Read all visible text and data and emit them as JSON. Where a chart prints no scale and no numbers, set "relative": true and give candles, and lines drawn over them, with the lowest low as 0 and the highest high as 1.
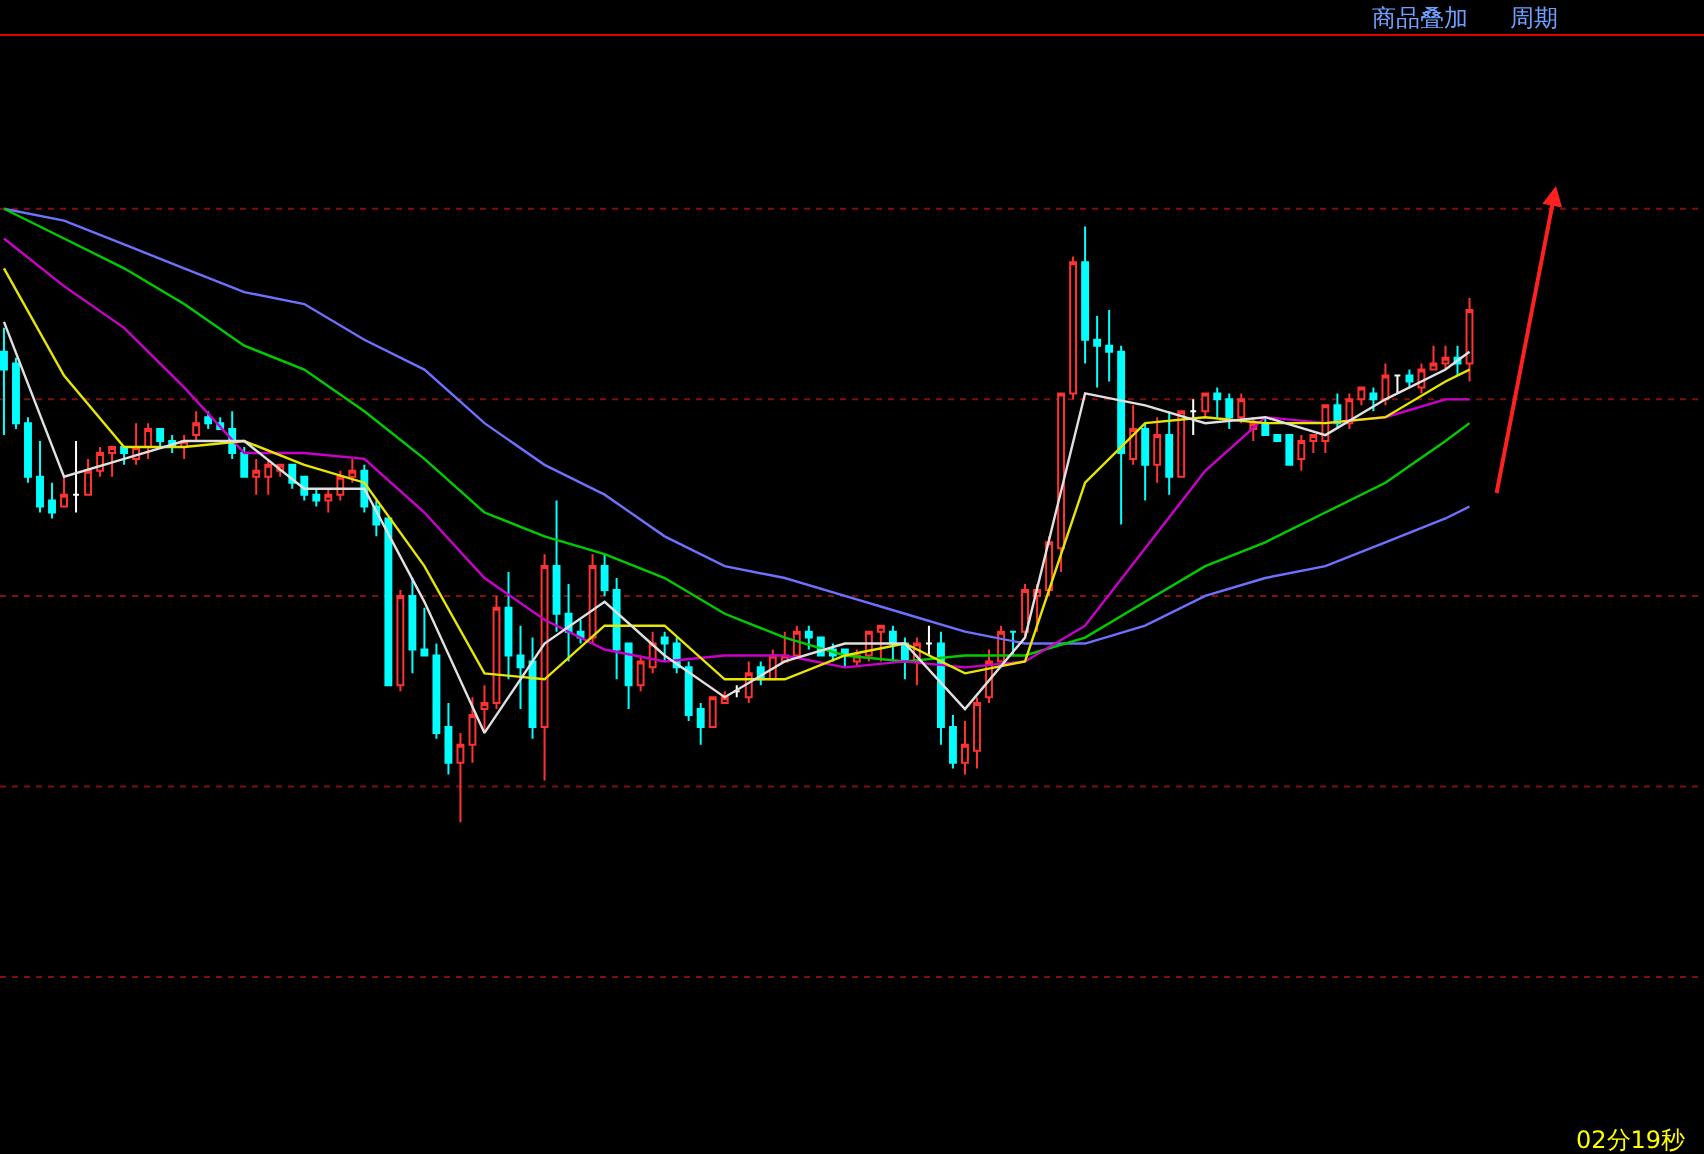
{
  "chart_data": {
    "type": "candlestick",
    "relative": true,
    "tick_labels": false,
    "ref_lines": [
      {
        "axis": "y",
        "value": 1.03,
        "color": "#801010",
        "line_style": "dotted"
      },
      {
        "axis": "y",
        "value": 0.71,
        "color": "#801010",
        "line_style": "dotted"
      },
      {
        "axis": "y",
        "value": 0.38,
        "color": "#801010",
        "line_style": "dotted"
      },
      {
        "axis": "y",
        "value": 0.06,
        "color": "#801010",
        "line_style": "dotted"
      },
      {
        "axis": "y",
        "value": -0.26,
        "color": "#801010",
        "line_style": "dotted"
      }
    ],
    "annotations": [
      "商品叠加",
      "周期",
      "02分19秒"
    ],
    "categories": [
      null,
      null,
      null,
      null,
      null,
      null,
      null,
      null,
      null,
      null,
      null,
      null,
      null,
      null,
      null,
      null,
      null,
      null,
      null,
      null,
      null,
      null,
      null,
      null,
      null,
      null,
      null,
      null,
      null,
      null,
      null,
      null,
      null,
      null,
      null,
      null,
      null,
      null,
      null,
      null,
      null,
      null,
      null,
      null,
      null,
      null,
      null,
      null,
      null,
      null,
      null,
      null,
      null,
      null,
      null,
      null,
      null,
      null,
      null,
      null,
      null,
      null,
      null,
      null,
      null,
      null,
      null,
      null,
      null,
      null,
      null,
      null,
      null,
      null,
      null,
      null,
      null,
      null,
      null,
      null,
      null,
      null,
      null,
      null,
      null,
      null,
      null,
      null,
      null,
      null,
      null,
      null,
      null,
      null,
      null,
      null,
      null,
      null,
      null,
      null,
      null,
      null,
      null,
      null,
      null,
      null,
      null,
      null,
      null,
      null,
      null,
      null,
      null,
      null,
      null,
      null,
      null,
      null,
      null,
      null,
      null,
      null,
      null
    ],
    "ohlc": [
      [
        0.79,
        0.83,
        0.65,
        0.76
      ],
      [
        0.77,
        0.78,
        0.66,
        0.67
      ],
      [
        0.67,
        0.68,
        0.57,
        0.58
      ],
      [
        0.58,
        0.64,
        0.52,
        0.53
      ],
      [
        0.54,
        0.57,
        0.51,
        0.52
      ],
      [
        0.53,
        0.58,
        0.53,
        0.55
      ],
      [
        0.55,
        0.64,
        0.52,
        0.55
      ],
      [
        0.55,
        0.61,
        0.55,
        0.59
      ],
      [
        0.59,
        0.63,
        0.58,
        0.62
      ],
      [
        0.62,
        0.63,
        0.58,
        0.63
      ],
      [
        0.63,
        0.63,
        0.6,
        0.62
      ],
      [
        0.61,
        0.67,
        0.6,
        0.63
      ],
      [
        0.63,
        0.67,
        0.61,
        0.66
      ],
      [
        0.66,
        0.66,
        0.63,
        0.64
      ],
      [
        0.64,
        0.65,
        0.62,
        0.63
      ],
      [
        0.63,
        0.65,
        0.61,
        0.64
      ],
      [
        0.65,
        0.69,
        0.64,
        0.67
      ],
      [
        0.68,
        0.69,
        0.66,
        0.67
      ],
      [
        0.67,
        0.68,
        0.66,
        0.66
      ],
      [
        0.66,
        0.69,
        0.61,
        0.62
      ],
      [
        0.62,
        0.63,
        0.58,
        0.58
      ],
      [
        0.58,
        0.61,
        0.55,
        0.59
      ],
      [
        0.58,
        0.61,
        0.55,
        0.6
      ],
      [
        0.59,
        0.6,
        0.58,
        0.6
      ],
      [
        0.6,
        0.6,
        0.56,
        0.57
      ],
      [
        0.58,
        0.58,
        0.54,
        0.55
      ],
      [
        0.55,
        0.56,
        0.53,
        0.54
      ],
      [
        0.54,
        0.56,
        0.52,
        0.55
      ],
      [
        0.55,
        0.59,
        0.54,
        0.58
      ],
      [
        0.58,
        0.61,
        0.57,
        0.59
      ],
      [
        0.59,
        0.6,
        0.52,
        0.53
      ],
      [
        0.53,
        0.54,
        0.48,
        0.5
      ],
      [
        0.51,
        0.51,
        0.23,
        0.23
      ],
      [
        0.23,
        0.39,
        0.22,
        0.38
      ],
      [
        0.38,
        0.41,
        0.25,
        0.29
      ],
      [
        0.29,
        0.36,
        0.28,
        0.28
      ],
      [
        0.28,
        0.3,
        0.14,
        0.15
      ],
      [
        0.16,
        0.2,
        0.08,
        0.1
      ],
      [
        0.1,
        0.15,
        0.0,
        0.13
      ],
      [
        0.13,
        0.21,
        0.1,
        0.18
      ],
      [
        0.19,
        0.23,
        0.15,
        0.2
      ],
      [
        0.2,
        0.38,
        0.19,
        0.36
      ],
      [
        0.36,
        0.42,
        0.24,
        0.28
      ],
      [
        0.28,
        0.33,
        0.19,
        0.26
      ],
      [
        0.27,
        0.31,
        0.14,
        0.16
      ],
      [
        0.16,
        0.45,
        0.07,
        0.43
      ],
      [
        0.43,
        0.54,
        0.32,
        0.35
      ],
      [
        0.35,
        0.4,
        0.27,
        0.32
      ],
      [
        0.32,
        0.34,
        0.3,
        0.31
      ],
      [
        0.31,
        0.45,
        0.3,
        0.43
      ],
      [
        0.43,
        0.45,
        0.38,
        0.39
      ],
      [
        0.39,
        0.41,
        0.24,
        0.29
      ],
      [
        0.3,
        0.3,
        0.19,
        0.23
      ],
      [
        0.23,
        0.28,
        0.22,
        0.27
      ],
      [
        0.26,
        0.32,
        0.25,
        0.3
      ],
      [
        0.31,
        0.32,
        0.27,
        0.3
      ],
      [
        0.3,
        0.31,
        0.25,
        0.26
      ],
      [
        0.26,
        0.27,
        0.17,
        0.18
      ],
      [
        0.19,
        0.2,
        0.13,
        0.16
      ],
      [
        0.16,
        0.21,
        0.16,
        0.21
      ],
      [
        0.2,
        0.22,
        0.2,
        0.21
      ],
      [
        0.22,
        0.23,
        0.21,
        0.22
      ],
      [
        0.21,
        0.27,
        0.2,
        0.25
      ],
      [
        0.26,
        0.27,
        0.23,
        0.24
      ],
      [
        0.24,
        0.29,
        0.24,
        0.28
      ],
      [
        0.27,
        0.32,
        0.27,
        0.28
      ],
      [
        0.28,
        0.33,
        0.28,
        0.32
      ],
      [
        0.32,
        0.33,
        0.29,
        0.31
      ],
      [
        0.31,
        0.31,
        0.28,
        0.28
      ],
      [
        0.29,
        0.3,
        0.27,
        0.28
      ],
      [
        0.29,
        0.29,
        0.26,
        0.28
      ],
      [
        0.27,
        0.29,
        0.26,
        0.28
      ],
      [
        0.28,
        0.32,
        0.27,
        0.32
      ],
      [
        0.32,
        0.33,
        0.27,
        0.33
      ],
      [
        0.32,
        0.33,
        0.27,
        0.3
      ],
      [
        0.3,
        0.31,
        0.24,
        0.27
      ],
      [
        0.27,
        0.31,
        0.23,
        0.3
      ],
      [
        0.3,
        0.33,
        0.28,
        0.3
      ],
      [
        0.3,
        0.32,
        0.13,
        0.16
      ],
      [
        0.16,
        0.18,
        0.09,
        0.1
      ],
      [
        0.1,
        0.17,
        0.08,
        0.13
      ],
      [
        0.12,
        0.21,
        0.09,
        0.2
      ],
      [
        0.21,
        0.29,
        0.2,
        0.27
      ],
      [
        0.27,
        0.33,
        0.27,
        0.32
      ],
      [
        0.32,
        0.32,
        0.28,
        0.32
      ],
      [
        0.32,
        0.4,
        0.31,
        0.39
      ],
      [
        0.38,
        0.4,
        0.32,
        0.39
      ],
      [
        0.39,
        0.48,
        0.38,
        0.47
      ],
      [
        0.46,
        0.72,
        0.42,
        0.72
      ],
      [
        0.72,
        0.95,
        0.71,
        0.94
      ],
      [
        0.94,
        1.0,
        0.77,
        0.81
      ],
      [
        0.81,
        0.85,
        0.73,
        0.8
      ],
      [
        0.8,
        0.86,
        0.74,
        0.79
      ],
      [
        0.79,
        0.8,
        0.5,
        0.62
      ],
      [
        0.61,
        0.7,
        0.6,
        0.66
      ],
      [
        0.66,
        0.67,
        0.54,
        0.6
      ],
      [
        0.6,
        0.68,
        0.57,
        0.65
      ],
      [
        0.65,
        0.69,
        0.55,
        0.58
      ],
      [
        0.58,
        0.69,
        0.58,
        0.69
      ],
      [
        0.69,
        0.71,
        0.65,
        0.69
      ],
      [
        0.69,
        0.72,
        0.68,
        0.72
      ],
      [
        0.72,
        0.73,
        0.68,
        0.71
      ],
      [
        0.71,
        0.72,
        0.66,
        0.68
      ],
      [
        0.68,
        0.72,
        0.67,
        0.71
      ],
      [
        0.66,
        0.68,
        0.64,
        0.67
      ],
      [
        0.67,
        0.68,
        0.65,
        0.65
      ],
      [
        0.65,
        0.65,
        0.64,
        0.64
      ],
      [
        0.65,
        0.65,
        0.6,
        0.6
      ],
      [
        0.61,
        0.65,
        0.59,
        0.64
      ],
      [
        0.64,
        0.65,
        0.62,
        0.65
      ],
      [
        0.64,
        0.7,
        0.62,
        0.7
      ],
      [
        0.7,
        0.72,
        0.66,
        0.67
      ],
      [
        0.67,
        0.72,
        0.66,
        0.71
      ],
      [
        0.71,
        0.73,
        0.7,
        0.73
      ],
      [
        0.72,
        0.73,
        0.69,
        0.71
      ],
      [
        0.71,
        0.77,
        0.7,
        0.75
      ],
      [
        0.75,
        0.75,
        0.72,
        0.75
      ],
      [
        0.75,
        0.76,
        0.73,
        0.74
      ],
      [
        0.73,
        0.77,
        0.72,
        0.76
      ],
      [
        0.76,
        0.8,
        0.76,
        0.77
      ],
      [
        0.77,
        0.8,
        0.76,
        0.78
      ],
      [
        0.78,
        0.8,
        0.75,
        0.77
      ],
      [
        0.77,
        0.88,
        0.74,
        0.86
      ]
    ],
    "colors": [
      "#00ffff",
      "#00ffff",
      "#00ffff",
      "#00ffff",
      "#00ffff",
      "#ff3232",
      "#ffffff",
      "#ff3232",
      "#ff3232",
      "#ff3232",
      "#00ffff",
      "#ff3232",
      "#ff3232",
      "#00ffff",
      "#00ffff",
      "#ff3232",
      "#ff3232",
      "#00ffff",
      "#00ffff",
      "#00ffff",
      "#00ffff",
      "#ff3232",
      "#ff3232",
      "#ff3232",
      "#00ffff",
      "#00ffff",
      "#00ffff",
      "#ff3232",
      "#ff3232",
      "#ff3232",
      "#00ffff",
      "#00ffff",
      "#00ffff",
      "#ff3232",
      "#00ffff",
      "#00ffff",
      "#00ffff",
      "#00ffff",
      "#ff3232",
      "#ff3232",
      "#ff3232",
      "#ff3232",
      "#00ffff",
      "#00ffff",
      "#00ffff",
      "#ff3232",
      "#00ffff",
      "#00ffff",
      "#00ffff",
      "#ff3232",
      "#00ffff",
      "#00ffff",
      "#00ffff",
      "#ff3232",
      "#ff3232",
      "#00ffff",
      "#00ffff",
      "#00ffff",
      "#00ffff",
      "#ff3232",
      "#ff3232",
      "#ffffff",
      "#ff3232",
      "#00ffff",
      "#ff3232",
      "#ff3232",
      "#ff3232",
      "#00ffff",
      "#00ffff",
      "#00ffff",
      "#00ffff",
      "#ff3232",
      "#ff3232",
      "#ff3232",
      "#00ffff",
      "#00ffff",
      "#ff3232",
      "#ffffff",
      "#00ffff",
      "#00ffff",
      "#ff3232",
      "#ff3232",
      "#ff3232",
      "#ff3232",
      "#00ffff",
      "#ff3232",
      "#ff3232",
      "#ff3232",
      "#ff3232",
      "#ff3232",
      "#00ffff",
      "#00ffff",
      "#00ffff",
      "#00ffff",
      "#ff3232",
      "#00ffff",
      "#ff3232",
      "#00ffff",
      "#ff3232",
      "#ffffff",
      "#ff3232",
      "#00ffff",
      "#00ffff",
      "#ff3232",
      "#ff3232",
      "#00ffff",
      "#00ffff",
      "#00ffff",
      "#ff3232",
      "#ff3232",
      "#ff3232",
      "#00ffff",
      "#ff3232",
      "#ff3232",
      "#00ffff",
      "#ff3232",
      "#ffffff",
      "#00ffff",
      "#ff3232",
      "#ff3232",
      "#ff3232",
      "#00ffff",
      "#ff3232"
    ],
    "series": [
      {
        "type": "line",
        "color": "#7070ff",
        "values": [
          1.03,
          null,
          null,
          null,
          null,
          1.01,
          null,
          null,
          null,
          null,
          0.97,
          null,
          null,
          null,
          null,
          0.93,
          null,
          null,
          null,
          null,
          0.89,
          null,
          null,
          null,
          null,
          0.87,
          null,
          null,
          null,
          null,
          0.81,
          null,
          null,
          null,
          null,
          0.76,
          null,
          null,
          null,
          null,
          0.67,
          null,
          null,
          null,
          null,
          0.6,
          null,
          null,
          null,
          null,
          0.55,
          null,
          null,
          null,
          null,
          0.48,
          null,
          null,
          null,
          null,
          0.43,
          null,
          null,
          null,
          null,
          0.41,
          null,
          null,
          null,
          null,
          0.38,
          null,
          null,
          null,
          null,
          0.35,
          null,
          null,
          null,
          null,
          0.32,
          null,
          null,
          null,
          null,
          0.3,
          null,
          null,
          null,
          null,
          0.3,
          null,
          null,
          null,
          null,
          0.33,
          null,
          null,
          null,
          null,
          0.38,
          null,
          null,
          null,
          null,
          0.41,
          null,
          null,
          null,
          null,
          0.43,
          null,
          null,
          null,
          null,
          0.47,
          null,
          null,
          null,
          null,
          0.51,
          null,
          0.53
        ]
      },
      {
        "type": "line",
        "color": "#00cc00",
        "values": [
          1.03,
          null,
          null,
          null,
          null,
          0.98,
          null,
          null,
          null,
          null,
          0.93,
          null,
          null,
          null,
          null,
          0.87,
          null,
          null,
          null,
          null,
          0.8,
          null,
          null,
          null,
          null,
          0.76,
          null,
          null,
          null,
          null,
          0.69,
          null,
          null,
          null,
          null,
          0.61,
          null,
          null,
          null,
          null,
          0.52,
          null,
          null,
          null,
          null,
          0.48,
          null,
          null,
          null,
          null,
          0.45,
          null,
          null,
          null,
          null,
          0.41,
          null,
          null,
          null,
          null,
          0.35,
          null,
          null,
          null,
          null,
          0.31,
          null,
          null,
          null,
          null,
          0.28,
          null,
          null,
          null,
          null,
          0.27,
          null,
          null,
          null,
          null,
          0.28,
          null,
          null,
          null,
          null,
          0.28,
          null,
          null,
          null,
          null,
          0.31,
          null,
          null,
          null,
          null,
          0.37,
          null,
          null,
          null,
          null,
          0.43,
          null,
          null,
          null,
          null,
          0.47,
          null,
          null,
          null,
          null,
          0.52,
          null,
          null,
          null,
          null,
          0.57,
          null,
          null,
          null,
          null,
          0.64,
          null,
          0.67
        ]
      },
      {
        "type": "line",
        "color": "#cc00cc",
        "values": [
          0.98,
          null,
          null,
          null,
          null,
          0.9,
          null,
          null,
          null,
          null,
          0.83,
          null,
          null,
          null,
          null,
          0.73,
          null,
          null,
          null,
          null,
          0.62,
          null,
          null,
          null,
          null,
          0.62,
          null,
          null,
          null,
          null,
          0.61,
          null,
          null,
          null,
          null,
          0.52,
          null,
          null,
          null,
          null,
          0.41,
          null,
          null,
          null,
          null,
          0.34,
          null,
          null,
          null,
          null,
          0.29,
          null,
          null,
          null,
          null,
          0.27,
          null,
          null,
          null,
          null,
          0.28,
          null,
          null,
          null,
          null,
          0.28,
          null,
          null,
          null,
          null,
          0.26,
          null,
          null,
          null,
          null,
          0.27,
          null,
          null,
          null,
          null,
          0.26,
          null,
          null,
          null,
          null,
          0.27,
          null,
          null,
          null,
          null,
          0.33,
          null,
          null,
          null,
          null,
          0.46,
          null,
          null,
          null,
          null,
          0.59,
          null,
          null,
          null,
          null,
          0.68,
          null,
          null,
          null,
          null,
          0.67,
          null,
          null,
          null,
          null,
          0.68,
          null,
          null,
          null,
          null,
          0.71,
          null,
          0.71
        ]
      },
      {
        "type": "line",
        "color": "#e6e600",
        "values": [
          0.93,
          null,
          null,
          null,
          null,
          0.75,
          null,
          null,
          null,
          null,
          0.63,
          null,
          null,
          null,
          null,
          0.63,
          null,
          null,
          null,
          null,
          0.64,
          null,
          null,
          null,
          null,
          0.6,
          null,
          null,
          null,
          null,
          0.57,
          null,
          null,
          null,
          null,
          0.43,
          null,
          null,
          null,
          null,
          0.25,
          null,
          null,
          null,
          null,
          0.24,
          null,
          null,
          null,
          null,
          0.33,
          null,
          null,
          null,
          null,
          0.33,
          null,
          null,
          null,
          null,
          0.24,
          null,
          null,
          null,
          null,
          0.24,
          null,
          null,
          null,
          null,
          0.28,
          null,
          null,
          null,
          null,
          0.3,
          null,
          null,
          null,
          null,
          0.25,
          null,
          null,
          null,
          null,
          0.27,
          null,
          null,
          null,
          null,
          0.57,
          null,
          null,
          null,
          null,
          0.67,
          null,
          null,
          null,
          null,
          0.68,
          null,
          null,
          null,
          null,
          0.67,
          null,
          null,
          null,
          null,
          0.67,
          null,
          null,
          null,
          null,
          0.68,
          null,
          null,
          null,
          null,
          0.74,
          null,
          0.76
        ]
      },
      {
        "type": "line",
        "color": "#e0e0e0",
        "values": [
          0.84,
          null,
          null,
          null,
          null,
          0.58,
          null,
          null,
          null,
          null,
          0.61,
          null,
          null,
          null,
          null,
          0.64,
          null,
          null,
          null,
          null,
          0.64,
          null,
          null,
          null,
          null,
          0.56,
          null,
          null,
          null,
          null,
          0.56,
          null,
          null,
          null,
          null,
          0.37,
          null,
          null,
          null,
          null,
          0.15,
          null,
          null,
          null,
          null,
          0.3,
          null,
          null,
          null,
          null,
          0.37,
          null,
          null,
          null,
          null,
          0.28,
          null,
          null,
          null,
          null,
          0.21,
          null,
          null,
          null,
          null,
          0.27,
          null,
          null,
          null,
          null,
          0.3,
          null,
          null,
          null,
          null,
          0.3,
          null,
          null,
          null,
          null,
          0.19,
          null,
          null,
          null,
          null,
          0.31,
          null,
          null,
          null,
          null,
          0.72,
          null,
          null,
          null,
          null,
          0.7,
          null,
          null,
          null,
          null,
          0.67,
          null,
          null,
          null,
          null,
          0.68,
          null,
          null,
          null,
          null,
          0.65,
          null,
          null,
          null,
          null,
          0.71,
          null,
          null,
          null,
          null,
          0.76,
          null,
          0.79
        ]
      }
    ]
  }
}
